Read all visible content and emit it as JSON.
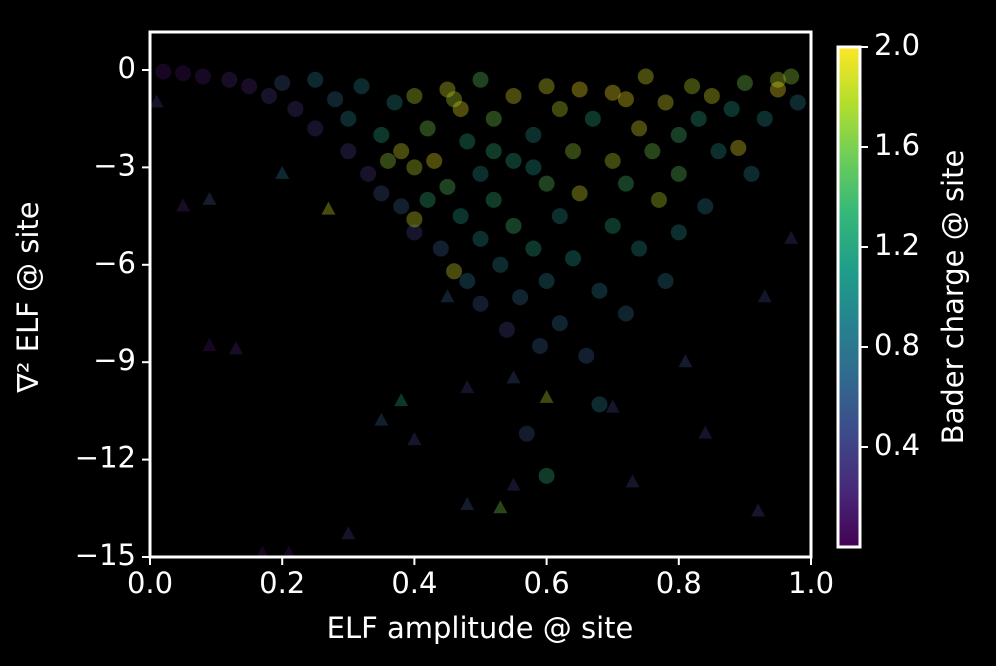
{
  "chart_data": {
    "type": "scatter",
    "xlabel": "ELF amplitude @ site",
    "ylabel": "∇² ELF @ site",
    "xlim": [
      0,
      1
    ],
    "ylim": [
      -15,
      1.17
    ],
    "xticks": [
      {
        "value": 0,
        "label": "0.0"
      },
      {
        "value": 0.2,
        "label": "0.2"
      },
      {
        "value": 0.4,
        "label": "0.4"
      },
      {
        "value": 0.6,
        "label": "0.6"
      },
      {
        "value": 0.8,
        "label": "0.8"
      },
      {
        "value": 1,
        "label": "1.0"
      }
    ],
    "yticks": [
      0,
      {
        "value": -3,
        "label": "−3"
      },
      {
        "value": -6,
        "label": "−6"
      },
      {
        "value": -9,
        "label": "−9"
      },
      {
        "value": -12,
        "label": "−12"
      },
      {
        "value": -15,
        "label": "−15"
      }
    ],
    "colormap": "viridis",
    "alpha": 0.33,
    "colorbar": {
      "label": "Bader charge @ site",
      "clim": [
        0,
        2.0
      ],
      "ticks": [
        0.4,
        0.8,
        1.2,
        1.6,
        {
          "value": 2,
          "label": "2.0"
        }
      ]
    },
    "series": [
      {
        "marker": "circle",
        "x": [
          0.02,
          0.05,
          0.08,
          0.12,
          0.15,
          0.18,
          0.2,
          0.22,
          0.25,
          0.25,
          0.28,
          0.3,
          0.3,
          0.32,
          0.33,
          0.35,
          0.35,
          0.37,
          0.38,
          0.38,
          0.4,
          0.4,
          0.4,
          0.42,
          0.42,
          0.43,
          0.44,
          0.45,
          0.45,
          0.46,
          0.47,
          0.47,
          0.48,
          0.48,
          0.5,
          0.5,
          0.5,
          0.5,
          0.52,
          0.52,
          0.53,
          0.54,
          0.55,
          0.55,
          0.55,
          0.56,
          0.57,
          0.58,
          0.58,
          0.59,
          0.6,
          0.6,
          0.6,
          0.6,
          0.62,
          0.62,
          0.62,
          0.64,
          0.64,
          0.65,
          0.65,
          0.66,
          0.67,
          0.68,
          0.68,
          0.7,
          0.7,
          0.7,
          0.72,
          0.72,
          0.72,
          0.74,
          0.74,
          0.75,
          0.76,
          0.77,
          0.78,
          0.78,
          0.8,
          0.8,
          0.8,
          0.82,
          0.83,
          0.84,
          0.85,
          0.86,
          0.88,
          0.89,
          0.9,
          0.91,
          0.93,
          0.95,
          0.95,
          0.97,
          0.98,
          0.58,
          0.52,
          0.46,
          0.36,
          0.4
        ],
        "y": [
          -0.05,
          -0.1,
          -0.2,
          -0.3,
          -0.5,
          -0.8,
          -0.4,
          -1.2,
          -0.3,
          -1.8,
          -0.9,
          -2.5,
          -1.5,
          -0.5,
          -3.2,
          -2.0,
          -3.8,
          -1.0,
          -2.5,
          -4.2,
          -0.8,
          -3.0,
          -5.0,
          -1.8,
          -4.0,
          -2.8,
          -5.5,
          -0.6,
          -3.6,
          -6.2,
          -1.2,
          -4.5,
          -2.2,
          -6.5,
          -0.3,
          -3.2,
          -5.2,
          -7.2,
          -1.5,
          -4.0,
          -6.0,
          -8.0,
          -0.8,
          -2.8,
          -4.8,
          -7.0,
          -11.2,
          -2.0,
          -5.5,
          -8.5,
          -0.5,
          -3.5,
          -6.5,
          -12.5,
          -1.2,
          -4.5,
          -7.8,
          -2.5,
          -5.8,
          -0.6,
          -3.8,
          -8.8,
          -1.5,
          -6.8,
          -10.3,
          -0.7,
          -2.8,
          -4.8,
          -0.9,
          -3.5,
          -7.5,
          -1.8,
          -5.5,
          -0.2,
          -2.5,
          -4.0,
          -1.0,
          -6.5,
          -2.0,
          -3.2,
          -5.0,
          -0.5,
          -1.5,
          -4.2,
          -0.8,
          -2.5,
          -1.2,
          -2.4,
          -0.4,
          -3.2,
          -1.5,
          -0.3,
          -0.6,
          -0.2,
          -1.0,
          -3.0,
          -2.5,
          -0.9,
          -2.8,
          -4.6
        ],
        "c": [
          0.1,
          0.1,
          0.15,
          0.2,
          0.2,
          0.3,
          0.5,
          0.3,
          0.8,
          0.3,
          0.7,
          0.35,
          0.9,
          0.9,
          0.3,
          1.2,
          0.5,
          1.0,
          1.9,
          0.6,
          1.8,
          1.8,
          0.4,
          1.6,
          1.3,
          1.95,
          0.6,
          1.9,
          1.5,
          1.9,
          1.95,
          1.1,
          1.2,
          0.8,
          1.5,
          1.0,
          1.0,
          0.5,
          1.6,
          1.3,
          0.9,
          0.4,
          1.9,
          1.2,
          1.4,
          0.7,
          0.5,
          1.0,
          1.2,
          0.6,
          1.9,
          1.5,
          0.9,
          1.3,
          1.8,
          1.0,
          0.7,
          1.7,
          1.1,
          2.0,
          1.9,
          0.6,
          1.2,
          0.8,
          0.9,
          2.0,
          1.8,
          1.2,
          2.0,
          1.4,
          0.7,
          1.9,
          1.0,
          1.9,
          1.6,
          1.8,
          1.9,
          0.8,
          1.4,
          1.5,
          1.0,
          1.8,
          1.2,
          0.8,
          1.9,
          1.0,
          1.1,
          1.95,
          1.6,
          0.9,
          1.0,
          1.8,
          2.0,
          1.7,
          0.9,
          1.1,
          1.3,
          1.8,
          1.7,
          1.9
        ]
      },
      {
        "marker": "triangle",
        "x": [
          0.01,
          0.05,
          0.09,
          0.09,
          0.13,
          0.17,
          0.2,
          0.21,
          0.27,
          0.3,
          0.35,
          0.38,
          0.4,
          0.45,
          0.48,
          0.48,
          0.53,
          0.55,
          0.55,
          0.6,
          0.7,
          0.73,
          0.81,
          0.84,
          0.92,
          0.93,
          0.97
        ],
        "y": [
          -1.0,
          -4.2,
          -4.0,
          -8.5,
          -8.6,
          -14.9,
          -3.2,
          -14.9,
          -4.3,
          -14.3,
          -10.8,
          -10.2,
          -11.4,
          -7.0,
          -9.8,
          -13.4,
          -13.5,
          -9.5,
          -12.8,
          -10.1,
          -10.4,
          -12.7,
          -9.0,
          -11.2,
          -13.6,
          -7.0,
          -5.2
        ],
        "c": [
          0.3,
          0.2,
          0.5,
          0.1,
          0.2,
          0.1,
          0.8,
          0.1,
          1.9,
          0.3,
          0.6,
          1.2,
          0.4,
          0.6,
          0.3,
          0.5,
          1.6,
          0.5,
          0.3,
          1.8,
          0.4,
          0.4,
          0.5,
          0.3,
          0.4,
          0.4,
          0.3
        ]
      }
    ]
  }
}
